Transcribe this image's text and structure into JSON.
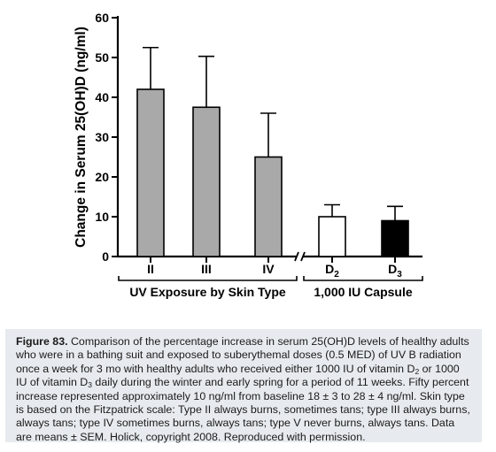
{
  "chart_data": {
    "type": "bar",
    "ylabel": "Change in Serum 25(OH)D (ng/ml)",
    "ylim": [
      0,
      60
    ],
    "yticks": [
      0,
      10,
      20,
      30,
      40,
      50,
      60
    ],
    "bars": [
      {
        "label": "II",
        "value": 42,
        "error": 10.5,
        "fill": "#a9a9a9"
      },
      {
        "label": "III",
        "value": 37.5,
        "error": 12.8,
        "fill": "#a9a9a9"
      },
      {
        "label": "IV",
        "value": 25,
        "error": 11,
        "fill": "#a9a9a9"
      },
      {
        "label": "D",
        "sub": "2",
        "value": 10,
        "error": 3,
        "fill": "#ffffff"
      },
      {
        "label": "D",
        "sub": "3",
        "value": 9,
        "error": 3.6,
        "fill": "#000000"
      }
    ],
    "groups": [
      {
        "label": "UV Exposure by Skin Type",
        "bars": [
          0,
          1,
          2
        ]
      },
      {
        "label": "1,000 IU Capsule",
        "bars": [
          3,
          4
        ]
      }
    ],
    "grid": false,
    "legend": "none"
  },
  "caption": {
    "label": "Figure 83.",
    "p1": " Comparison of the percentage increase in serum 25(OH)D levels of healthy adults who were in a bathing suit and exposed to suberythemal doses (0.5 MED) of UV B radiation once a week for 3 mo with healthy adults who received either 1000 IU of vitamin D",
    "s1": "2",
    "p2": " or 1000 IU of vitamin D",
    "s2": "3",
    "p3": " daily during the winter and early spring for a period of 11 weeks. Fifty percent increase represented approximately 10 ng/ml from baseline 18 ± 3 to 28 ± 4 ng/ml. Skin type is based on the Fitzpatrick scale: Type II always burns, sometimes tans; type III always burns, always tans; type IV sometimes burns, always tans; type V never burns, always tans. Data are means ± SEM. Holick, copyright 2008. Reproduced with permission."
  }
}
